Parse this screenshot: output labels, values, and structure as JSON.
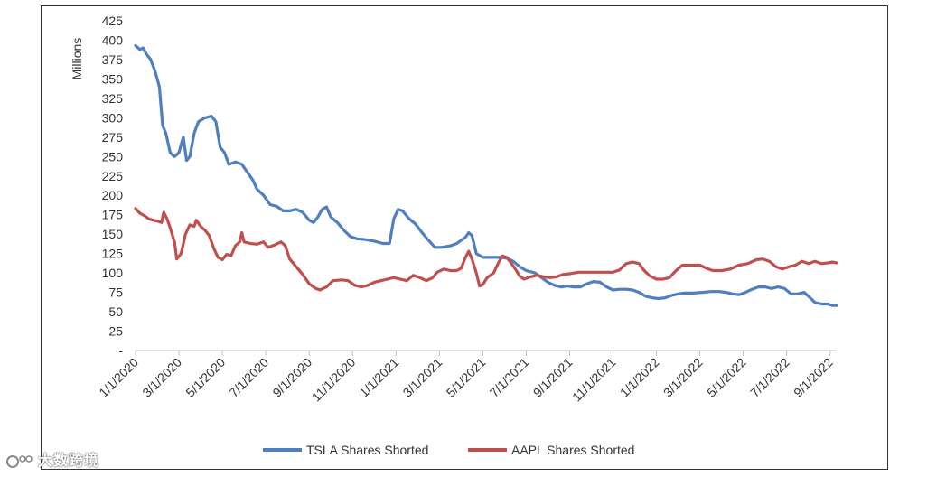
{
  "chart_data": {
    "type": "line",
    "title": "",
    "ylabel": "Millions",
    "xlabel": "",
    "ylim": [
      0,
      425
    ],
    "y_ticks": [
      0,
      25,
      50,
      75,
      100,
      125,
      150,
      175,
      200,
      225,
      250,
      275,
      300,
      325,
      350,
      375,
      400,
      425
    ],
    "y_tick_labels": [
      "-",
      "25",
      "50",
      "75",
      "100",
      "125",
      "150",
      "175",
      "200",
      "225",
      "250",
      "275",
      "300",
      "325",
      "350",
      "375",
      "400",
      "425"
    ],
    "x_range_months": [
      0,
      32.3
    ],
    "x_tick_months": [
      0,
      2,
      4,
      6,
      8,
      10,
      12,
      14,
      16,
      18,
      20,
      22,
      24,
      26,
      28,
      30,
      32
    ],
    "x_tick_labels": [
      "1/1/2020",
      "3/1/2020",
      "5/1/2020",
      "7/1/2020",
      "9/1/2020",
      "11/1/2020",
      "1/1/2021",
      "3/1/2021",
      "5/1/2021",
      "7/1/2021",
      "9/1/2021",
      "11/1/2021",
      "1/1/2022",
      "3/1/2022",
      "5/1/2022",
      "7/1/2022",
      "9/1/2022"
    ],
    "series": [
      {
        "name": "TSLA Shares Shorted",
        "color": "#4f7fc0",
        "points": [
          [
            0,
            393
          ],
          [
            0.2,
            388
          ],
          [
            0.35,
            390
          ],
          [
            0.5,
            382
          ],
          [
            0.7,
            375
          ],
          [
            0.9,
            360
          ],
          [
            1.1,
            340
          ],
          [
            1.25,
            290
          ],
          [
            1.4,
            280
          ],
          [
            1.6,
            255
          ],
          [
            1.8,
            250
          ],
          [
            2.0,
            255
          ],
          [
            2.2,
            275
          ],
          [
            2.35,
            245
          ],
          [
            2.5,
            250
          ],
          [
            2.7,
            280
          ],
          [
            2.9,
            295
          ],
          [
            3.2,
            300
          ],
          [
            3.5,
            302
          ],
          [
            3.7,
            295
          ],
          [
            3.9,
            262
          ],
          [
            4.1,
            255
          ],
          [
            4.3,
            240
          ],
          [
            4.6,
            243
          ],
          [
            4.9,
            240
          ],
          [
            5.1,
            232
          ],
          [
            5.4,
            220
          ],
          [
            5.6,
            208
          ],
          [
            5.9,
            200
          ],
          [
            6.2,
            188
          ],
          [
            6.5,
            186
          ],
          [
            6.8,
            180
          ],
          [
            7.1,
            180
          ],
          [
            7.4,
            182
          ],
          [
            7.7,
            178
          ],
          [
            8.0,
            168
          ],
          [
            8.2,
            165
          ],
          [
            8.4,
            172
          ],
          [
            8.6,
            182
          ],
          [
            8.8,
            185
          ],
          [
            9.0,
            172
          ],
          [
            9.3,
            165
          ],
          [
            9.6,
            155
          ],
          [
            9.9,
            147
          ],
          [
            10.2,
            144
          ],
          [
            10.6,
            143
          ],
          [
            11.0,
            141
          ],
          [
            11.4,
            138
          ],
          [
            11.7,
            138
          ],
          [
            11.9,
            170
          ],
          [
            12.1,
            182
          ],
          [
            12.3,
            180
          ],
          [
            12.6,
            170
          ],
          [
            12.9,
            163
          ],
          [
            13.2,
            152
          ],
          [
            13.5,
            142
          ],
          [
            13.8,
            133
          ],
          [
            14.1,
            133
          ],
          [
            14.5,
            135
          ],
          [
            14.8,
            138
          ],
          [
            15.0,
            142
          ],
          [
            15.2,
            146
          ],
          [
            15.35,
            152
          ],
          [
            15.5,
            148
          ],
          [
            15.7,
            125
          ],
          [
            16.0,
            120
          ],
          [
            16.4,
            120
          ],
          [
            16.8,
            120
          ],
          [
            17.1,
            119
          ],
          [
            17.4,
            115
          ],
          [
            17.7,
            108
          ],
          [
            18.0,
            103
          ],
          [
            18.4,
            100
          ],
          [
            18.7,
            94
          ],
          [
            19.0,
            88
          ],
          [
            19.3,
            84
          ],
          [
            19.6,
            82
          ],
          [
            19.9,
            83
          ],
          [
            20.2,
            82
          ],
          [
            20.5,
            82
          ],
          [
            20.8,
            86
          ],
          [
            21.1,
            89
          ],
          [
            21.4,
            88
          ],
          [
            21.7,
            82
          ],
          [
            22.0,
            78
          ],
          [
            22.3,
            79
          ],
          [
            22.6,
            79
          ],
          [
            22.9,
            78
          ],
          [
            23.2,
            75
          ],
          [
            23.5,
            70
          ],
          [
            23.8,
            68
          ],
          [
            24.1,
            67
          ],
          [
            24.4,
            68
          ],
          [
            24.7,
            71
          ],
          [
            25.0,
            73
          ],
          [
            25.3,
            74
          ],
          [
            25.7,
            74
          ],
          [
            26.1,
            75
          ],
          [
            26.5,
            76
          ],
          [
            26.9,
            76
          ],
          [
            27.2,
            75
          ],
          [
            27.5,
            73
          ],
          [
            27.8,
            72
          ],
          [
            28.1,
            75
          ],
          [
            28.4,
            79
          ],
          [
            28.7,
            82
          ],
          [
            29.0,
            82
          ],
          [
            29.3,
            80
          ],
          [
            29.6,
            82
          ],
          [
            29.9,
            80
          ],
          [
            30.2,
            73
          ],
          [
            30.5,
            73
          ],
          [
            30.8,
            75
          ],
          [
            31.0,
            70
          ],
          [
            31.3,
            62
          ],
          [
            31.6,
            60
          ],
          [
            31.9,
            60
          ],
          [
            32.1,
            58
          ],
          [
            32.3,
            58
          ]
        ]
      },
      {
        "name": "AAPL Shares Shorted",
        "color": "#c0504d",
        "points": [
          [
            0,
            183
          ],
          [
            0.2,
            177
          ],
          [
            0.4,
            174
          ],
          [
            0.6,
            170
          ],
          [
            0.8,
            168
          ],
          [
            1.0,
            167
          ],
          [
            1.2,
            165
          ],
          [
            1.3,
            178
          ],
          [
            1.45,
            170
          ],
          [
            1.6,
            158
          ],
          [
            1.8,
            140
          ],
          [
            1.9,
            118
          ],
          [
            2.1,
            125
          ],
          [
            2.3,
            150
          ],
          [
            2.5,
            162
          ],
          [
            2.7,
            160
          ],
          [
            2.8,
            168
          ],
          [
            3.0,
            160
          ],
          [
            3.2,
            155
          ],
          [
            3.4,
            148
          ],
          [
            3.6,
            132
          ],
          [
            3.8,
            120
          ],
          [
            4.0,
            117
          ],
          [
            4.2,
            124
          ],
          [
            4.4,
            122
          ],
          [
            4.6,
            135
          ],
          [
            4.8,
            140
          ],
          [
            4.9,
            152
          ],
          [
            5.0,
            140
          ],
          [
            5.3,
            138
          ],
          [
            5.6,
            137
          ],
          [
            5.9,
            140
          ],
          [
            6.1,
            133
          ],
          [
            6.4,
            136
          ],
          [
            6.7,
            140
          ],
          [
            6.9,
            135
          ],
          [
            7.1,
            118
          ],
          [
            7.4,
            108
          ],
          [
            7.7,
            98
          ],
          [
            8.0,
            86
          ],
          [
            8.3,
            80
          ],
          [
            8.5,
            78
          ],
          [
            8.8,
            82
          ],
          [
            9.1,
            90
          ],
          [
            9.5,
            91
          ],
          [
            9.8,
            90
          ],
          [
            10.1,
            84
          ],
          [
            10.4,
            82
          ],
          [
            10.7,
            84
          ],
          [
            11.0,
            88
          ],
          [
            11.3,
            90
          ],
          [
            11.6,
            92
          ],
          [
            11.9,
            94
          ],
          [
            12.2,
            92
          ],
          [
            12.5,
            90
          ],
          [
            12.8,
            97
          ],
          [
            13.1,
            94
          ],
          [
            13.4,
            90
          ],
          [
            13.7,
            94
          ],
          [
            13.9,
            101
          ],
          [
            14.2,
            105
          ],
          [
            14.5,
            103
          ],
          [
            14.8,
            103
          ],
          [
            15.0,
            106
          ],
          [
            15.2,
            120
          ],
          [
            15.35,
            128
          ],
          [
            15.5,
            118
          ],
          [
            15.7,
            100
          ],
          [
            15.85,
            83
          ],
          [
            16.0,
            85
          ],
          [
            16.2,
            94
          ],
          [
            16.5,
            100
          ],
          [
            16.7,
            112
          ],
          [
            16.9,
            122
          ],
          [
            17.1,
            120
          ],
          [
            17.3,
            113
          ],
          [
            17.5,
            105
          ],
          [
            17.7,
            96
          ],
          [
            17.9,
            92
          ],
          [
            18.2,
            95
          ],
          [
            18.5,
            97
          ],
          [
            18.8,
            95
          ],
          [
            19.1,
            94
          ],
          [
            19.4,
            95
          ],
          [
            19.7,
            98
          ],
          [
            20.0,
            99
          ],
          [
            20.4,
            101
          ],
          [
            20.8,
            101
          ],
          [
            21.2,
            101
          ],
          [
            21.6,
            101
          ],
          [
            22.0,
            101
          ],
          [
            22.3,
            104
          ],
          [
            22.6,
            112
          ],
          [
            22.9,
            114
          ],
          [
            23.2,
            112
          ],
          [
            23.4,
            104
          ],
          [
            23.7,
            96
          ],
          [
            24.0,
            92
          ],
          [
            24.3,
            92
          ],
          [
            24.6,
            94
          ],
          [
            24.9,
            103
          ],
          [
            25.2,
            110
          ],
          [
            25.6,
            110
          ],
          [
            26.0,
            110
          ],
          [
            26.3,
            106
          ],
          [
            26.6,
            103
          ],
          [
            27.0,
            103
          ],
          [
            27.4,
            105
          ],
          [
            27.8,
            110
          ],
          [
            28.2,
            112
          ],
          [
            28.6,
            117
          ],
          [
            28.9,
            118
          ],
          [
            29.2,
            115
          ],
          [
            29.5,
            108
          ],
          [
            29.8,
            105
          ],
          [
            30.1,
            108
          ],
          [
            30.4,
            110
          ],
          [
            30.7,
            115
          ],
          [
            31.0,
            112
          ],
          [
            31.3,
            115
          ],
          [
            31.6,
            112
          ],
          [
            31.9,
            113
          ],
          [
            32.1,
            114
          ],
          [
            32.3,
            113
          ]
        ]
      }
    ],
    "legend": [
      "TSLA Shares Shorted",
      "AAPL Shares Shorted"
    ],
    "legend_position": "bottom"
  },
  "watermark": {
    "text": "大数跨境",
    "logo": "watermark-logo"
  }
}
